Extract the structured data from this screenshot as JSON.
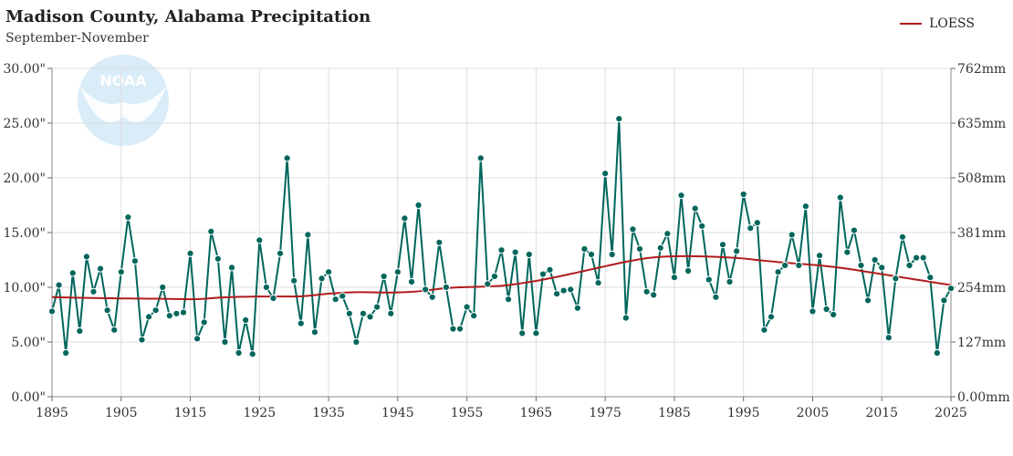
{
  "header": {
    "title": "Madison County, Alabama Precipitation",
    "subtitle": "September-November"
  },
  "legend": {
    "label": "LOESS",
    "color": "#b01c1c",
    "placement": "top-right"
  },
  "colors": {
    "series": "#00665c",
    "loess": "#b01c1c",
    "logo": "#d9ecf8"
  },
  "logo": {
    "text": "NOAA",
    "icon": "noaa-logo"
  },
  "chart_data": {
    "type": "line",
    "title": "Madison County, Alabama Precipitation",
    "subtitle": "September-November",
    "xlim": [
      1895,
      2025
    ],
    "ylim": [
      0,
      30
    ],
    "grid": true,
    "x_ticks": [
      "1895",
      "1905",
      "1915",
      "1925",
      "1935",
      "1945",
      "1955",
      "1965",
      "1975",
      "1985",
      "1995",
      "2005",
      "2015",
      "2025"
    ],
    "y_ticks_left": [
      "0.00\"",
      "5.00\"",
      "10.00\"",
      "15.00\"",
      "20.00\"",
      "25.00\"",
      "30.00\""
    ],
    "y_ticks_right": [
      "0.00mm",
      "127mm",
      "254mm",
      "381mm",
      "508mm",
      "635mm",
      "762mm"
    ],
    "x": [
      1895,
      1896,
      1897,
      1898,
      1899,
      1900,
      1901,
      1902,
      1903,
      1904,
      1905,
      1906,
      1907,
      1908,
      1909,
      1910,
      1911,
      1912,
      1913,
      1914,
      1915,
      1916,
      1917,
      1918,
      1919,
      1920,
      1921,
      1922,
      1923,
      1924,
      1925,
      1926,
      1927,
      1928,
      1929,
      1930,
      1931,
      1932,
      1933,
      1934,
      1935,
      1936,
      1937,
      1938,
      1939,
      1940,
      1941,
      1942,
      1943,
      1944,
      1945,
      1946,
      1947,
      1948,
      1949,
      1950,
      1951,
      1952,
      1953,
      1954,
      1955,
      1956,
      1957,
      1958,
      1959,
      1960,
      1961,
      1962,
      1963,
      1964,
      1965,
      1966,
      1967,
      1968,
      1969,
      1970,
      1971,
      1972,
      1973,
      1974,
      1975,
      1976,
      1977,
      1978,
      1979,
      1980,
      1981,
      1982,
      1983,
      1984,
      1985,
      1986,
      1987,
      1988,
      1989,
      1990,
      1991,
      1992,
      1993,
      1994,
      1995,
      1996,
      1997,
      1998,
      1999,
      2000,
      2001,
      2002,
      2003,
      2004,
      2005,
      2006,
      2007,
      2008,
      2009,
      2010,
      2011,
      2012,
      2013,
      2014,
      2015,
      2016,
      2017,
      2018,
      2019,
      2020,
      2021,
      2022,
      2023,
      2024,
      2025
    ],
    "series": [
      {
        "values": [
          7.8,
          10.2,
          4.0,
          11.3,
          6.0,
          12.8,
          9.6,
          11.7,
          7.9,
          6.1,
          11.4,
          16.4,
          12.4,
          5.2,
          7.3,
          7.9,
          10.0,
          7.4,
          7.6,
          7.7,
          13.1,
          5.3,
          6.8,
          15.1,
          12.6,
          5.0,
          11.8,
          4.0,
          7.0,
          3.9,
          14.3,
          10.0,
          9.0,
          13.1,
          21.8,
          10.6,
          6.7,
          14.8,
          5.9,
          10.8,
          11.4,
          8.9,
          9.2,
          7.6,
          5.0,
          7.6,
          7.3,
          8.2,
          11.0,
          7.6,
          11.4,
          16.3,
          10.5,
          17.5,
          9.8,
          9.1,
          14.1,
          10.0,
          6.2,
          6.2,
          8.2,
          7.4,
          21.8,
          10.3,
          11.0,
          13.4,
          8.9,
          13.2,
          5.8,
          13.0,
          5.8,
          11.2,
          11.6,
          9.4,
          9.7,
          9.8,
          8.1,
          13.5,
          13.0,
          10.4,
          20.4,
          13.0,
          25.4,
          7.2,
          15.3,
          13.5,
          9.6,
          9.3,
          13.6,
          14.9,
          10.9,
          18.4,
          11.5,
          17.2,
          15.6,
          10.7,
          9.1,
          13.9,
          10.5,
          13.3,
          18.5,
          15.4,
          15.9,
          6.1,
          7.3,
          11.4,
          12.0,
          14.8,
          12.0,
          17.4,
          7.8,
          12.9,
          8.0,
          7.5,
          18.2,
          13.2,
          15.2,
          12.0,
          8.8,
          12.5,
          11.8,
          5.4,
          10.8,
          14.6,
          12.0,
          12.7,
          12.7,
          10.9,
          4.0,
          8.8,
          9.9
        ]
      },
      {
        "name": "LOESS",
        "values": [
          9.1,
          9.08,
          9.07,
          9.05,
          9.04,
          9.03,
          9.02,
          9.01,
          9.0,
          8.99,
          8.98,
          8.98,
          8.97,
          8.97,
          8.96,
          8.96,
          8.95,
          8.94,
          8.93,
          8.92,
          8.91,
          8.92,
          8.95,
          9.0,
          9.05,
          9.08,
          9.1,
          9.12,
          9.14,
          9.15,
          9.16,
          9.16,
          9.16,
          9.16,
          9.16,
          9.16,
          9.18,
          9.22,
          9.28,
          9.35,
          9.42,
          9.46,
          9.5,
          9.53,
          9.55,
          9.55,
          9.54,
          9.53,
          9.52,
          9.52,
          9.53,
          9.55,
          9.58,
          9.63,
          9.7,
          9.78,
          9.85,
          9.92,
          9.97,
          10.0,
          10.02,
          10.03,
          10.05,
          10.08,
          10.1,
          10.14,
          10.2,
          10.28,
          10.38,
          10.48,
          10.58,
          10.7,
          10.82,
          10.95,
          11.08,
          11.22,
          11.36,
          11.5,
          11.64,
          11.78,
          11.92,
          12.06,
          12.2,
          12.33,
          12.45,
          12.56,
          12.66,
          12.73,
          12.78,
          12.81,
          12.83,
          12.84,
          12.84,
          12.83,
          12.82,
          12.8,
          12.78,
          12.75,
          12.72,
          12.68,
          12.63,
          12.56,
          12.49,
          12.43,
          12.37,
          12.3,
          12.25,
          12.2,
          12.15,
          12.1,
          12.05,
          12.0,
          11.93,
          11.86,
          11.78,
          11.7,
          11.6,
          11.5,
          11.4,
          11.3,
          11.2,
          11.1,
          11.0,
          10.9,
          10.8,
          10.7,
          10.6,
          10.5,
          10.4,
          10.3,
          10.2
        ]
      }
    ]
  }
}
